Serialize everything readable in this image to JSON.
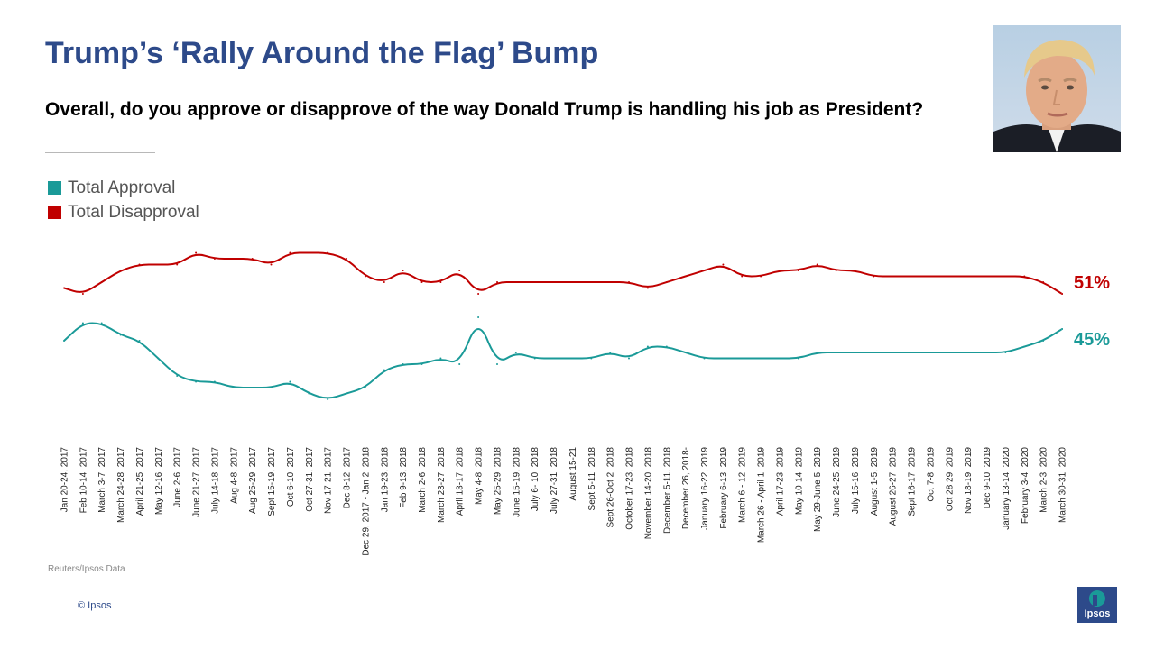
{
  "title": "Trump’s ‘Rally Around the Flag’ Bump",
  "question": "Overall, do you approve or disapprove of the way Donald Trump is handling his job as President?",
  "source": "Reuters/Ipsos Data",
  "copyright": "© Ipsos",
  "logo_text": "Ipsos",
  "colors": {
    "title": "#2d4a8a",
    "approval": "#1a9a98",
    "disapproval": "#c00000"
  },
  "chart_data": {
    "type": "line",
    "title": "",
    "xlabel": "",
    "ylabel": "",
    "ylim": [
      0,
      100
    ],
    "grid": false,
    "legend": "top-left",
    "categories": [
      "Jan 20-24, 2017",
      "Feb 10-14, 2017",
      "March 3-7, 2017",
      "March 24-28, 2017",
      "April 21-25, 2017",
      "May 12-16, 2017",
      "June 2-6, 2017",
      "June 21-27, 2017",
      "July 14-18, 2017",
      "Aug 4-8, 2017",
      "Aug 25-29, 2017",
      "Sept 15-19, 2017",
      "Oct 6-10, 2017",
      "Oct 27-31, 2017",
      "Nov 17-21, 2017",
      "Dec 8-12, 2017",
      "Dec 29, 2017 - Jan 2, 2018",
      "Jan 19-23, 2018",
      "Feb 9-13, 2018",
      "March 2-6, 2018",
      "March 23-27, 2018",
      "April 13-17, 2018",
      "May 4-8, 2018",
      "May 25-29, 2018",
      "June 15-19, 2018",
      "July 6- 10, 2018",
      "July 27-31, 2018",
      "August 15-21",
      "Sept 5-11, 2018",
      "Sept 26-Oct 2, 2018",
      "October 17-23, 2018",
      "November 14-20, 2018",
      "December 5-11, 2018",
      "December 26, 2018-",
      "January 16-22, 2019",
      "February 6-13, 2019",
      "March 6 - 12, 2019",
      "March 26 - April 1, 2019",
      "April 17-23, 2019",
      "May 10-14, 2019",
      "May 29-June 5, 2019",
      "June 24-25, 2019",
      "July 15-16, 2019",
      "August 1-5, 2019",
      "August 26-27, 2019",
      "Sept 16-17, 2019",
      "Oct 7-8, 2019",
      "Oct 28 29, 2019",
      "Nov 18-19, 2019",
      "Dec 9-10, 2019",
      "January 13-14, 2020",
      "February 3-4, 2020",
      "March 2-3, 2020",
      "March 30-31, 2020"
    ],
    "series": [
      {
        "name": "Total Approval",
        "values": [
          43,
          46,
          46,
          44,
          43,
          40,
          37,
          36,
          36,
          35,
          35,
          35,
          36,
          34,
          33,
          34,
          35,
          38,
          39,
          39,
          40,
          39,
          47,
          39,
          41,
          40,
          40,
          40,
          40,
          41,
          40,
          42,
          42,
          41,
          40,
          40,
          40,
          40,
          40,
          40,
          41,
          41,
          41,
          41,
          41,
          41,
          41,
          41,
          41,
          41,
          41,
          42,
          43,
          45
        ],
        "end_label": "45%"
      },
      {
        "name": "Total Disapproval",
        "values": [
          52,
          51,
          53,
          55,
          56,
          56,
          56,
          58,
          57,
          57,
          57,
          56,
          58,
          58,
          58,
          57,
          54,
          53,
          55,
          53,
          53,
          55,
          51,
          53,
          53,
          53,
          53,
          53,
          53,
          53,
          53,
          52,
          53,
          54,
          55,
          56,
          54,
          54,
          55,
          55,
          56,
          55,
          55,
          54,
          54,
          54,
          54,
          54,
          54,
          54,
          54,
          54,
          53,
          51
        ],
        "end_label": "51%"
      }
    ]
  }
}
